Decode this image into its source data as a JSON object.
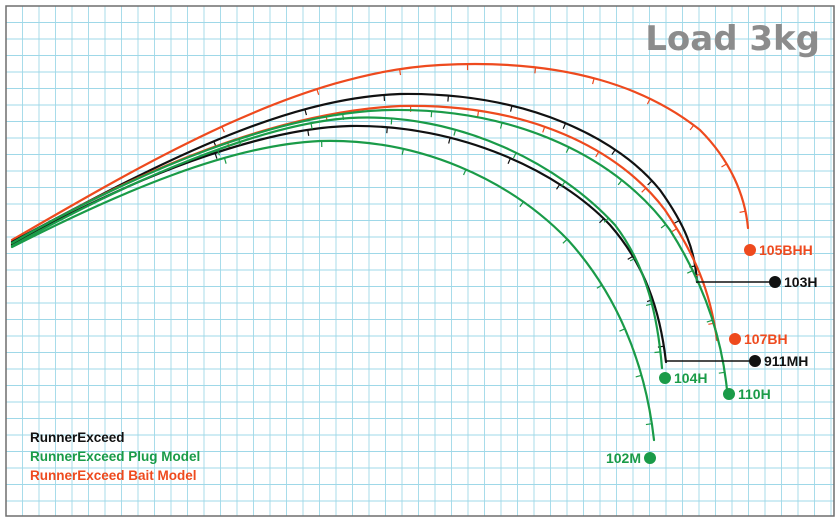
{
  "chart_data": {
    "type": "line",
    "title": "Load 3kg",
    "colors": {
      "RunnerExceed": "#111111",
      "RunnerExceed Plug Model": "#1a9b48",
      "RunnerExceed Bait Model": "#ee4a1e",
      "grid": "#9fd8e8"
    },
    "grid": true,
    "legend_position": "bottom-left",
    "legend": [
      {
        "name": "RunnerExceed",
        "color": "#111111"
      },
      {
        "name": "RunnerExceed Plug Model",
        "color": "#1a9b48"
      },
      {
        "name": "RunnerExceed Bait Model",
        "color": "#ee4a1e"
      }
    ],
    "series": [
      {
        "name": "105BHH",
        "group": "RunnerExceed Bait Model",
        "color": "#ee4a1e"
      },
      {
        "name": "103H",
        "group": "RunnerExceed",
        "color": "#111111"
      },
      {
        "name": "107BH",
        "group": "RunnerExceed Bait Model",
        "color": "#ee4a1e"
      },
      {
        "name": "911MH",
        "group": "RunnerExceed",
        "color": "#111111"
      },
      {
        "name": "104H",
        "group": "RunnerExceed Plug Model",
        "color": "#1a9b48"
      },
      {
        "name": "110H",
        "group": "RunnerExceed Plug Model",
        "color": "#1a9b48"
      },
      {
        "name": "102M",
        "group": "RunnerExceed Plug Model",
        "color": "#1a9b48"
      }
    ]
  }
}
